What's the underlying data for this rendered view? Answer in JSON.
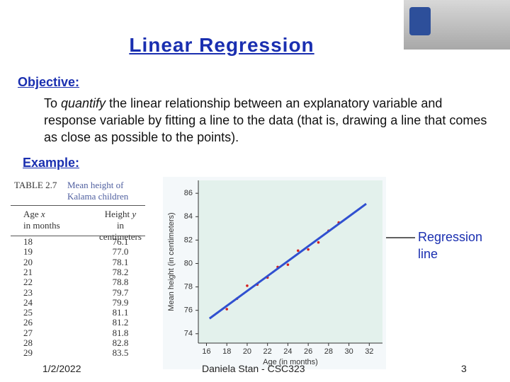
{
  "slide": {
    "title": "Linear Regression",
    "objective_label": "Objective:",
    "objective_text": [
      "To ",
      "quantify",
      " the linear relationship between an explanatory variable and response variable by fitting a line to the data (that is, drawing a line that comes as close as possible to the points)."
    ],
    "example_label": "Example:",
    "table": {
      "number": "TABLE 2.7",
      "caption": "Mean height of Kalama children",
      "headers": [
        [
          "Age ",
          "x",
          "in months"
        ],
        [
          "Height ",
          "y",
          "in centimeters"
        ]
      ],
      "rows": [
        [
          "18",
          "76.1"
        ],
        [
          "19",
          "77.0"
        ],
        [
          "20",
          "78.1"
        ],
        [
          "21",
          "78.2"
        ],
        [
          "22",
          "78.8"
        ],
        [
          "23",
          "79.7"
        ],
        [
          "24",
          "79.9"
        ],
        [
          "25",
          "81.1"
        ],
        [
          "26",
          "81.2"
        ],
        [
          "27",
          "81.8"
        ],
        [
          "28",
          "82.8"
        ],
        [
          "29",
          "83.5"
        ]
      ]
    },
    "footer": {
      "date": "1/2/2022",
      "author": "Daniela Stan - CSC323",
      "page": "3"
    }
  },
  "chart_data": {
    "type": "scatter",
    "xlabel": "Age (in months)",
    "ylabel": "Mean height (in centimeters)",
    "xlim": [
      15.2,
      33.3
    ],
    "ylim": [
      73.2,
      87.1
    ],
    "xticks": [
      16,
      18,
      20,
      22,
      24,
      26,
      28,
      30,
      32
    ],
    "yticks": [
      74,
      76,
      78,
      80,
      82,
      84,
      86
    ],
    "series": [
      {
        "mode": "markers",
        "color": "#d62020",
        "x": [
          18,
          19,
          20,
          21,
          22,
          23,
          24,
          25,
          26,
          27,
          28,
          29
        ],
        "values": [
          76.1,
          77.0,
          78.1,
          78.2,
          78.8,
          79.7,
          79.9,
          81.1,
          81.2,
          81.8,
          82.8,
          83.5
        ]
      },
      {
        "name": "Regression line",
        "mode": "line",
        "color": "#3050d0",
        "x": [
          16.3,
          31.7
        ],
        "values": [
          75.3,
          85.1
        ]
      }
    ]
  }
}
